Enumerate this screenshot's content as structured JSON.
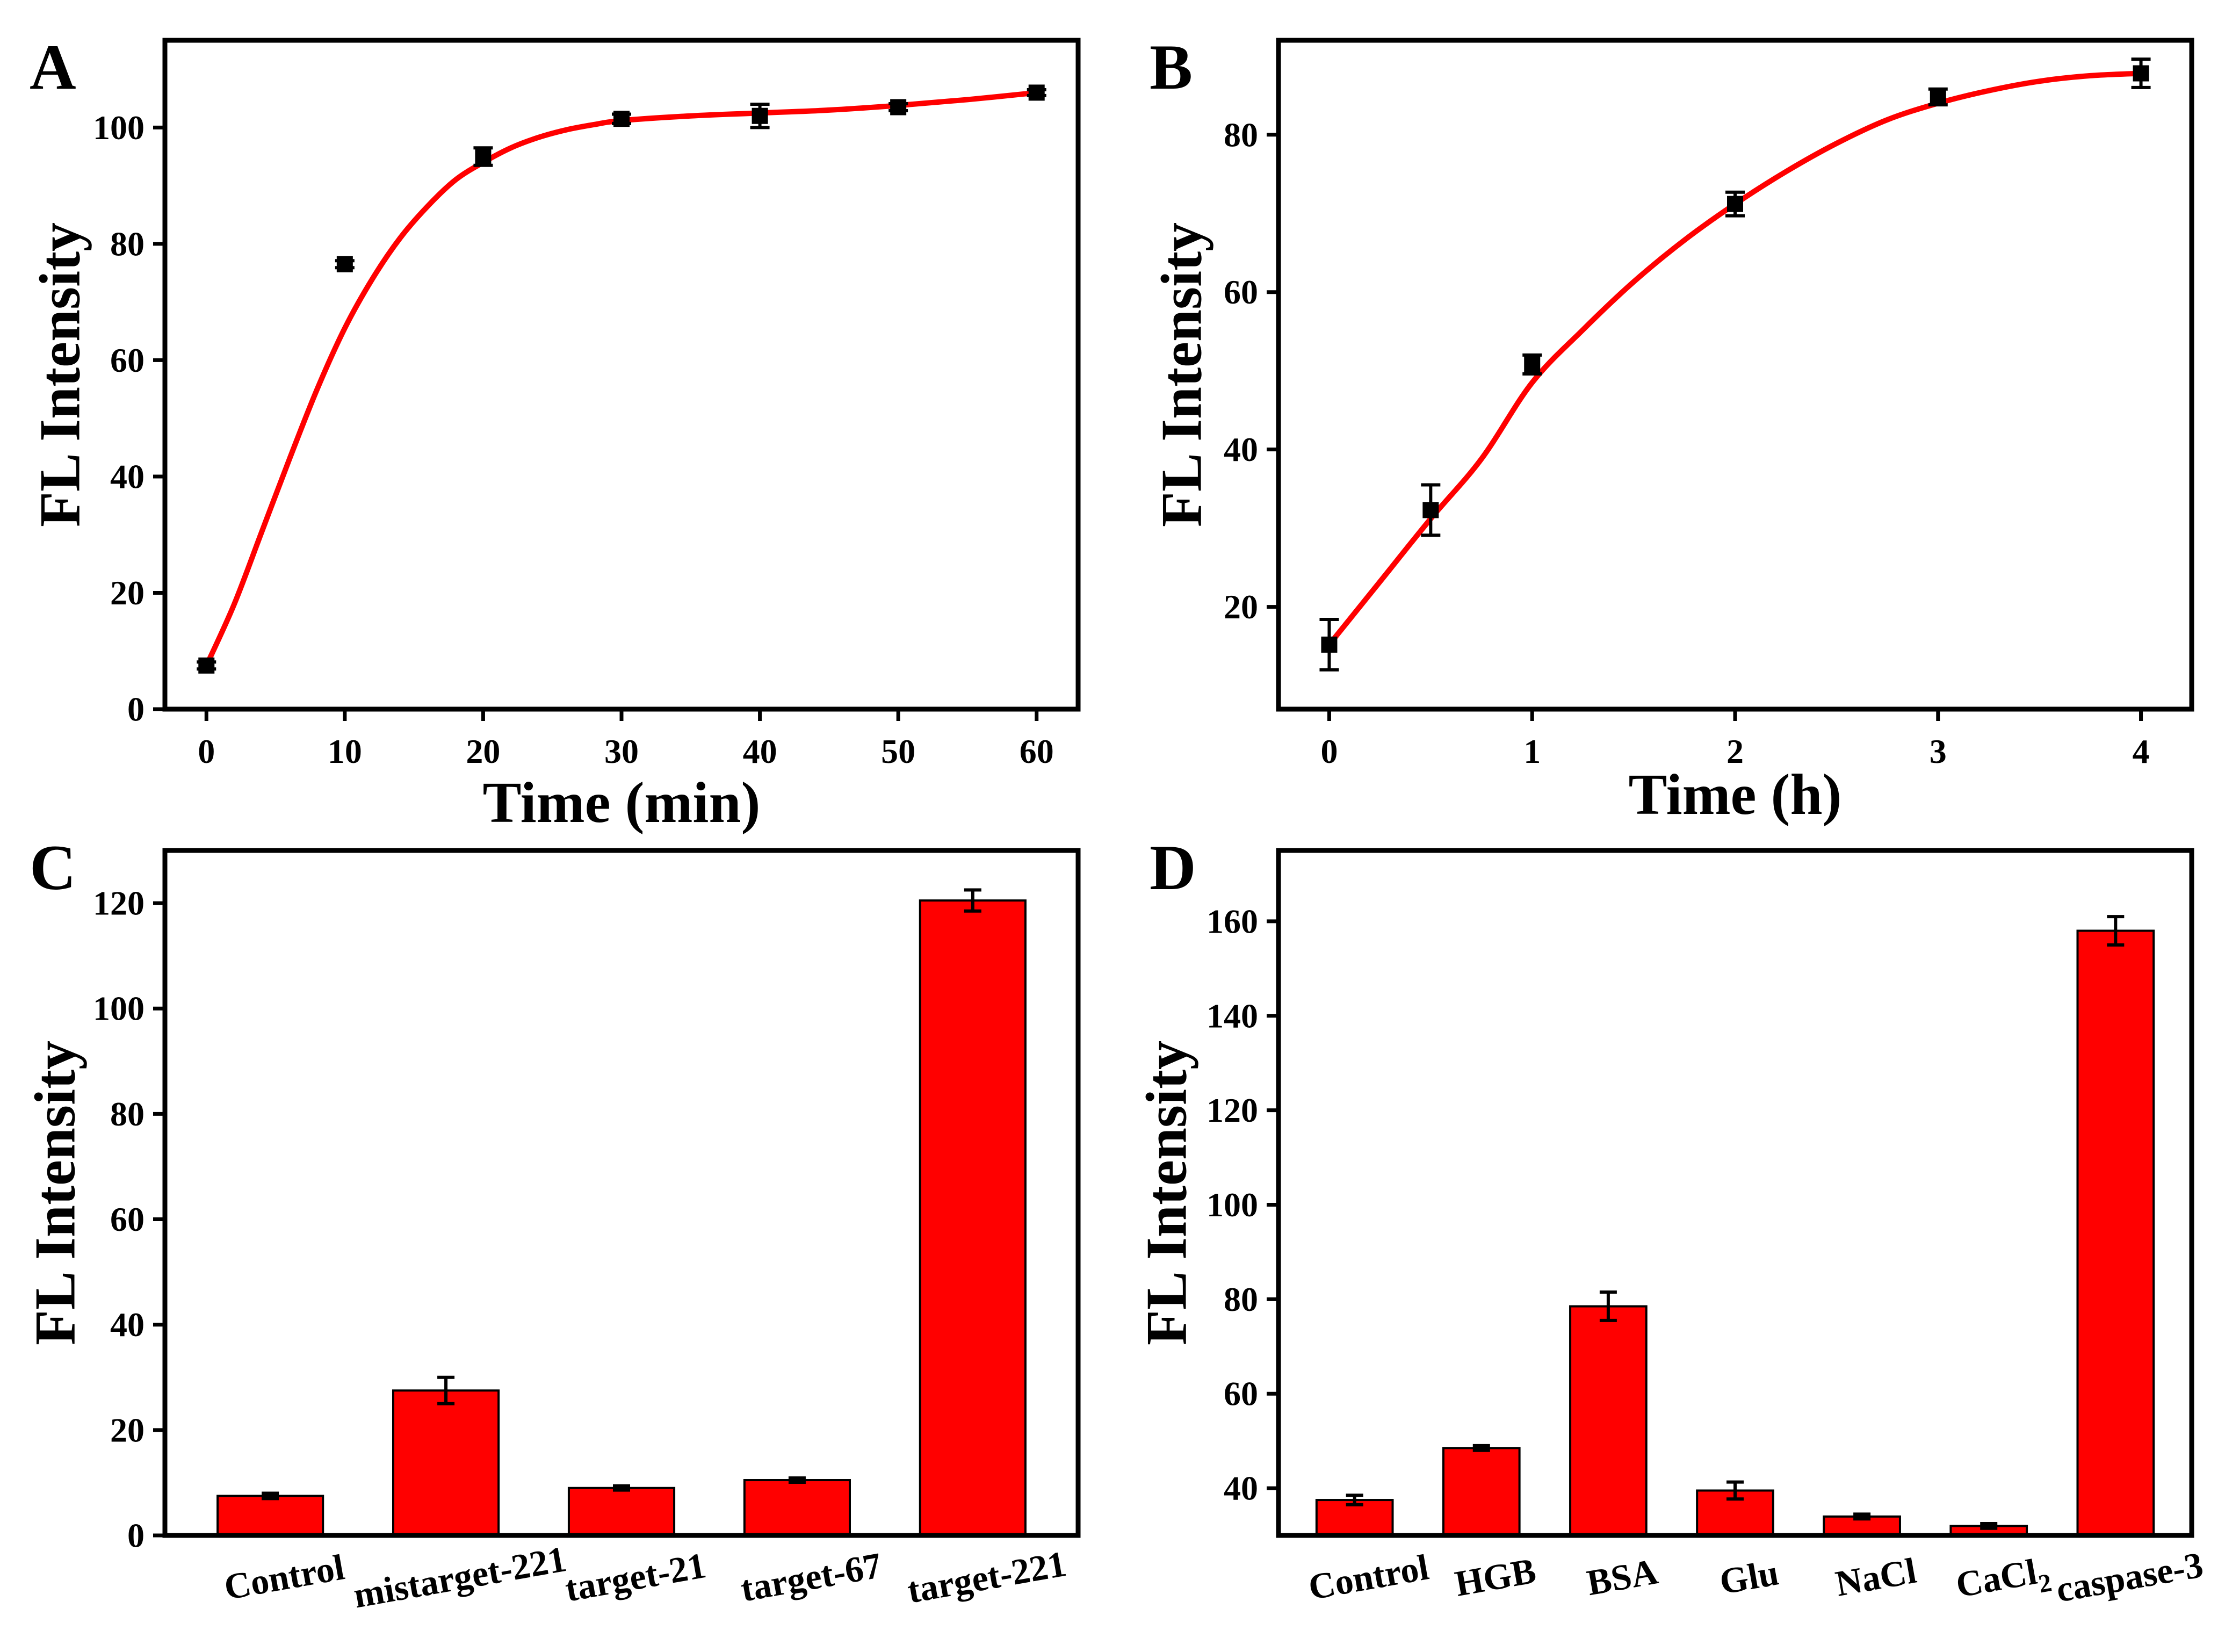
{
  "chart_data": [
    {
      "panel": "A",
      "type": "scatter",
      "xlabel": "Time (min)",
      "ylabel": "FL Intensity",
      "xlim": [
        -3,
        63
      ],
      "ylim": [
        0,
        115
      ],
      "xticks": [
        0,
        10,
        20,
        30,
        40,
        50,
        60
      ],
      "yticks": [
        0,
        20,
        40,
        60,
        80,
        100
      ],
      "points": [
        {
          "x": 0,
          "y": 7.5,
          "err": 0.6
        },
        {
          "x": 10,
          "y": 76.5,
          "err": 0.6
        },
        {
          "x": 20,
          "y": 95.0,
          "err": 1.5
        },
        {
          "x": 30,
          "y": 101.5,
          "err": 0.8
        },
        {
          "x": 40,
          "y": 102.0,
          "err": 2.0
        },
        {
          "x": 50,
          "y": 103.5,
          "err": 0.6
        },
        {
          "x": 60,
          "y": 106.0,
          "err": 0.5
        }
      ],
      "fit": {
        "color": "#ff0000",
        "x": [
          0,
          2,
          4,
          6,
          8,
          10,
          12,
          14,
          16,
          18,
          20,
          22,
          24,
          26,
          28,
          30,
          35,
          40,
          45,
          50,
          55,
          60
        ],
        "y": [
          7.5,
          18,
          30.5,
          43,
          55,
          65.5,
          74,
          81,
          86.5,
          91,
          94,
          96.5,
          98.3,
          99.6,
          100.5,
          101.2,
          102,
          102.5,
          103,
          103.8,
          104.8,
          106
        ]
      }
    },
    {
      "panel": "B",
      "type": "scatter",
      "xlabel": "Time (h)",
      "ylabel": "FL Intensity",
      "xlim": [
        -0.25,
        4.25
      ],
      "ylim": [
        7,
        92
      ],
      "xticks": [
        0,
        1,
        2,
        3,
        4
      ],
      "yticks": [
        20,
        40,
        60,
        80
      ],
      "points": [
        {
          "x": 0,
          "y": 15.2,
          "err": 3.2
        },
        {
          "x": 0.5,
          "y": 32.3,
          "err": 3.2
        },
        {
          "x": 1,
          "y": 50.8,
          "err": 1.2
        },
        {
          "x": 2,
          "y": 71.2,
          "err": 1.5
        },
        {
          "x": 3,
          "y": 84.8,
          "err": 1.0
        },
        {
          "x": 4,
          "y": 87.8,
          "err": 1.8
        }
      ],
      "fit": {
        "color": "#ff0000",
        "x": [
          0,
          0.25,
          0.5,
          0.75,
          1,
          1.25,
          1.5,
          1.75,
          2,
          2.25,
          2.5,
          2.75,
          3,
          3.25,
          3.5,
          3.75,
          4
        ],
        "y": [
          15.2,
          23.2,
          31.2,
          38.8,
          48.5,
          55.2,
          61.3,
          66.6,
          71.2,
          75.3,
          78.9,
          81.9,
          84,
          85.6,
          86.8,
          87.5,
          87.8
        ]
      }
    },
    {
      "panel": "C",
      "type": "bar",
      "ylabel": "FL Intensity",
      "ylim": [
        0,
        130
      ],
      "yticks": [
        0,
        20,
        40,
        60,
        80,
        100,
        120
      ],
      "categories": [
        "Control",
        "mistarget-221",
        "target-21",
        "target-67",
        "target-221"
      ],
      "values": [
        7.5,
        27.5,
        9.0,
        10.5,
        120.5
      ],
      "errors": [
        0.5,
        2.5,
        0.4,
        0.4,
        2.0
      ],
      "color": "#ff0000"
    },
    {
      "panel": "D",
      "type": "bar",
      "ylabel": "FL Intensity",
      "ylim": [
        30,
        175
      ],
      "yticks": [
        40,
        60,
        80,
        100,
        120,
        140,
        160
      ],
      "categories": [
        "Control",
        "HGB",
        "BSA",
        "Glu",
        "NaCl",
        "CaCl",
        "caspase-3"
      ],
      "category_subscripts": [
        "",
        "",
        "",
        "",
        "",
        "2",
        ""
      ],
      "values": [
        37.5,
        48.5,
        78.5,
        39.5,
        34.0,
        32.0,
        158.0
      ],
      "errors": [
        1.0,
        0.5,
        3.0,
        1.8,
        0.5,
        0.5,
        3.0
      ],
      "color": "#ff0000"
    }
  ]
}
